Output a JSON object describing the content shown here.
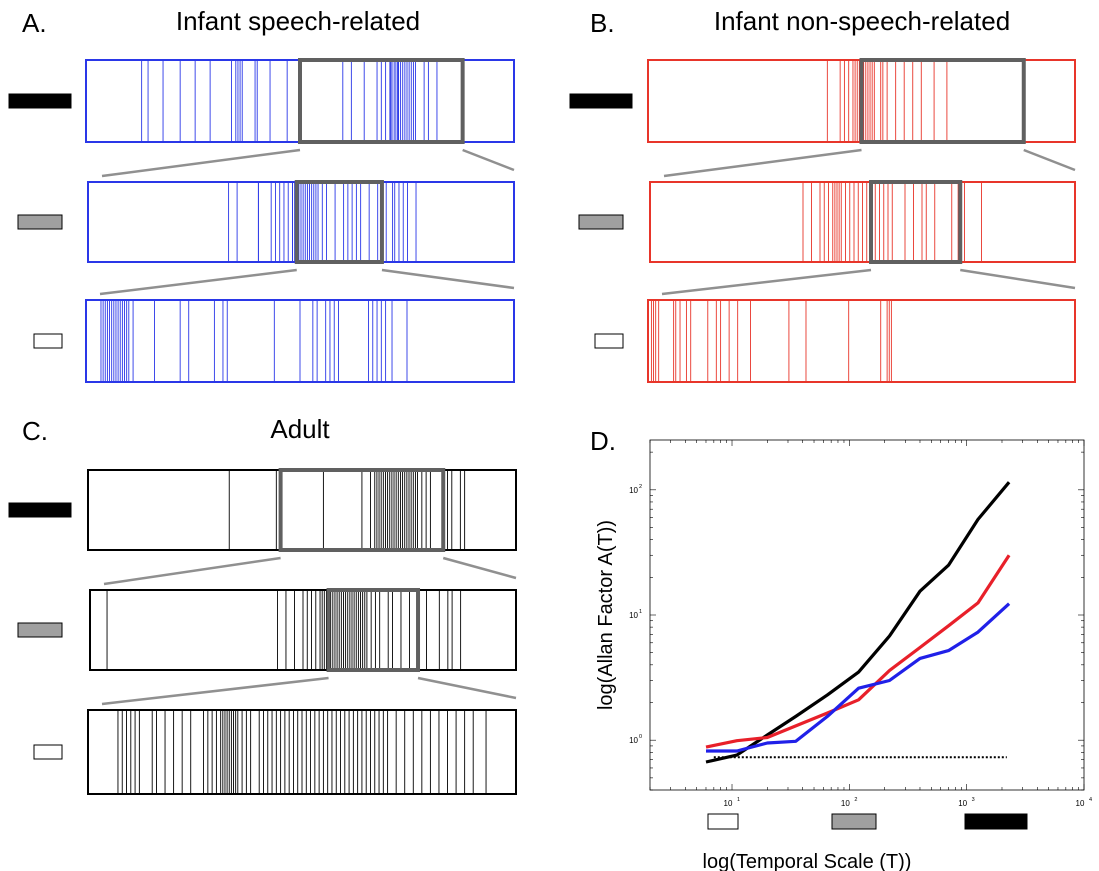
{
  "panels": [
    {
      "letter": "A.",
      "title": "Infant speech-related",
      "color": "#2a37e8",
      "rows": [
        {
          "scale": "long",
          "events": [
            0.13,
            0.145,
            0.18,
            0.22,
            0.255,
            0.29,
            0.34,
            0.36,
            0.355,
            0.35,
            0.365,
            0.395,
            0.4,
            0.43,
            0.47,
            0.62,
            0.65,
            0.69,
            0.7,
            0.71,
            0.712,
            0.715,
            0.72,
            0.724,
            0.728,
            0.73,
            0.735,
            0.74,
            0.745,
            0.75,
            0.755,
            0.76,
            0.765,
            0.73,
            0.77,
            0.79,
            0.8,
            0.82,
            0.68,
            0.6
          ],
          "zoom": [
            0.5,
            0.88
          ]
        },
        {
          "scale": "medium",
          "events": [
            0.33,
            0.35,
            0.4,
            0.4,
            0.43,
            0.44,
            0.45,
            0.46,
            0.47,
            0.48,
            0.48,
            0.485,
            0.49,
            0.495,
            0.5,
            0.505,
            0.51,
            0.515,
            0.52,
            0.525,
            0.53,
            0.535,
            0.54,
            0.55,
            0.56,
            0.58,
            0.6,
            0.61,
            0.62,
            0.63,
            0.64,
            0.66,
            0.68,
            0.7,
            0.715,
            0.72,
            0.73,
            0.74,
            0.75,
            0.77
          ],
          "zoom": [
            0.49,
            0.69
          ]
        },
        {
          "scale": "short",
          "events": [
            0.035,
            0.04,
            0.045,
            0.05,
            0.055,
            0.06,
            0.065,
            0.07,
            0.075,
            0.08,
            0.085,
            0.09,
            0.095,
            0.1,
            0.11,
            0.16,
            0.22,
            0.24,
            0.3,
            0.32,
            0.33,
            0.44,
            0.5,
            0.54,
            0.53,
            0.56,
            0.57,
            0.58,
            0.59,
            0.66,
            0.67,
            0.68,
            0.69,
            0.7,
            0.715,
            0.75
          ]
        }
      ]
    },
    {
      "letter": "B.",
      "title": "Infant non-speech-related",
      "color": "#e8352a",
      "rows": [
        {
          "scale": "long",
          "events": [
            0.42,
            0.45,
            0.46,
            0.47,
            0.48,
            0.485,
            0.49,
            0.495,
            0.5,
            0.505,
            0.51,
            0.515,
            0.52,
            0.525,
            0.53,
            0.545,
            0.55,
            0.56,
            0.58,
            0.6,
            0.62,
            0.64,
            0.67,
            0.7
          ],
          "zoom": [
            0.5,
            0.88
          ]
        },
        {
          "scale": "medium",
          "events": [
            0.36,
            0.38,
            0.4,
            0.41,
            0.42,
            0.43,
            0.435,
            0.44,
            0.445,
            0.45,
            0.46,
            0.47,
            0.48,
            0.49,
            0.5,
            0.51,
            0.52,
            0.53,
            0.54,
            0.55,
            0.56,
            0.57,
            0.6,
            0.62,
            0.64,
            0.65,
            0.67,
            0.71,
            0.725,
            0.73,
            0.74,
            0.78
          ],
          "zoom": [
            0.52,
            0.73
          ]
        },
        {
          "scale": "short",
          "events": [
            0.008,
            0.013,
            0.018,
            0.025,
            0.06,
            0.065,
            0.075,
            0.09,
            0.1,
            0.14,
            0.16,
            0.17,
            0.19,
            0.21,
            0.24,
            0.33,
            0.37,
            0.47,
            0.545,
            0.56,
            0.565,
            0.57
          ]
        }
      ]
    },
    {
      "letter": "C.",
      "title": "Adult",
      "color": "#000000",
      "rows": [
        {
          "scale": "long",
          "events": [
            0.33,
            0.45,
            0.44,
            0.55,
            0.64,
            0.66,
            0.67,
            0.675,
            0.68,
            0.685,
            0.69,
            0.695,
            0.7,
            0.705,
            0.71,
            0.715,
            0.72,
            0.725,
            0.73,
            0.735,
            0.74,
            0.745,
            0.75,
            0.755,
            0.76,
            0.765,
            0.77,
            0.78,
            0.79,
            0.8,
            0.83,
            0.84,
            0.85,
            0.87,
            0.88
          ],
          "zoom": [
            0.45,
            0.83
          ]
        },
        {
          "scale": "medium",
          "events": [
            0.04,
            0.44,
            0.46,
            0.48,
            0.5,
            0.51,
            0.52,
            0.53,
            0.54,
            0.545,
            0.55,
            0.555,
            0.56,
            0.565,
            0.57,
            0.575,
            0.58,
            0.585,
            0.59,
            0.595,
            0.6,
            0.605,
            0.61,
            0.615,
            0.62,
            0.625,
            0.63,
            0.635,
            0.64,
            0.645,
            0.65,
            0.66,
            0.67,
            0.68,
            0.7,
            0.71,
            0.73,
            0.75,
            0.77,
            0.79,
            0.82,
            0.84,
            0.85,
            0.87
          ],
          "zoom": [
            0.56,
            0.77
          ]
        },
        {
          "scale": "short",
          "events": [
            0.07,
            0.08,
            0.09,
            0.1,
            0.11,
            0.12,
            0.15,
            0.16,
            0.18,
            0.2,
            0.22,
            0.24,
            0.27,
            0.28,
            0.29,
            0.3,
            0.31,
            0.315,
            0.32,
            0.325,
            0.33,
            0.335,
            0.34,
            0.345,
            0.35,
            0.36,
            0.37,
            0.38,
            0.4,
            0.41,
            0.42,
            0.43,
            0.44,
            0.45,
            0.46,
            0.47,
            0.48,
            0.49,
            0.5,
            0.51,
            0.52,
            0.53,
            0.54,
            0.55,
            0.56,
            0.57,
            0.58,
            0.59,
            0.6,
            0.61,
            0.62,
            0.63,
            0.64,
            0.65,
            0.66,
            0.67,
            0.68,
            0.69,
            0.7,
            0.72,
            0.74,
            0.76,
            0.78,
            0.8,
            0.82,
            0.84,
            0.86,
            0.88,
            0.9,
            0.93
          ]
        }
      ]
    }
  ],
  "scale_keys": {
    "long": "#000000",
    "medium": "#a0a0a0",
    "short": "#ffffff",
    "zoom_box": "#606060",
    "connector": "#909090"
  },
  "chart_data": {
    "letter": "D.",
    "type": "line",
    "xlabel": "log(Temporal Scale (T))",
    "ylabel": "log(Allan Factor A(T))",
    "x_scale": "log",
    "y_scale": "log",
    "xlim": [
      2,
      10000
    ],
    "ylim": [
      0.4,
      250
    ],
    "x_ticks": [
      {
        "value": 10,
        "label": "10",
        "exp": "1"
      },
      {
        "value": 100,
        "label": "10",
        "exp": "2"
      },
      {
        "value": 1000,
        "label": "10",
        "exp": "3"
      },
      {
        "value": 10000,
        "label": "10",
        "exp": "4"
      }
    ],
    "y_ticks": [
      {
        "value": 1,
        "label": "10",
        "exp": "0"
      },
      {
        "value": 10,
        "label": "10",
        "exp": "1"
      },
      {
        "value": 100,
        "label": "10",
        "exp": "2"
      }
    ],
    "series": [
      {
        "color": "#000000",
        "x": [
          6,
          11,
          20,
          35,
          65,
          120,
          220,
          400,
          700,
          1250,
          2300
        ],
        "y": [
          0.67,
          0.76,
          1.1,
          1.55,
          2.3,
          3.5,
          6.8,
          15.5,
          25,
          58,
          115
        ]
      },
      {
        "color": "#e8202a",
        "x": [
          6,
          11,
          20,
          35,
          65,
          120,
          220,
          400,
          700,
          1250,
          2300
        ],
        "y": [
          0.88,
          0.99,
          1.05,
          1.3,
          1.65,
          2.1,
          3.6,
          5.5,
          8.2,
          12.5,
          30
        ]
      },
      {
        "color": "#2020e8",
        "x": [
          6,
          11,
          20,
          35,
          65,
          120,
          220,
          400,
          700,
          1250,
          2300
        ],
        "y": [
          0.82,
          0.82,
          0.95,
          0.98,
          1.55,
          2.6,
          3.0,
          4.5,
          5.2,
          7.3,
          12.3
        ]
      },
      {
        "color": "#000000",
        "dashed": true,
        "x": [
          7,
          2200
        ],
        "y": [
          0.73,
          0.73
        ]
      }
    ],
    "scale_markers": [
      "short",
      "medium",
      "long"
    ],
    "grid": false
  }
}
